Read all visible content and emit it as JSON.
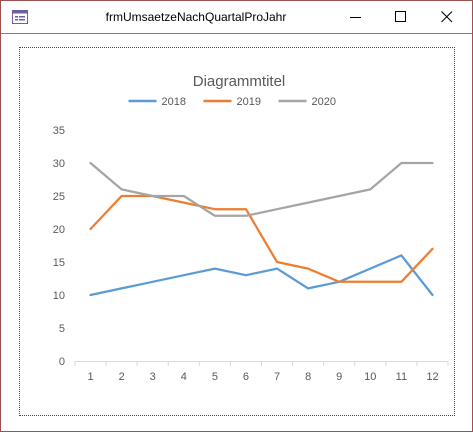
{
  "window": {
    "title": "frmUmsaetzeNachQuartalProJahr"
  },
  "icons": {
    "app": "form-icon",
    "minimize": "minimize-icon",
    "maximize": "maximize-icon",
    "close": "close-icon"
  },
  "chart_data": {
    "type": "line",
    "title": "Diagrammtitel",
    "xlabel": "",
    "ylabel": "",
    "categories": [
      "1",
      "2",
      "3",
      "4",
      "5",
      "6",
      "7",
      "8",
      "9",
      "10",
      "11",
      "12"
    ],
    "ylim": [
      0,
      35
    ],
    "yticks": [
      "0",
      "5",
      "10",
      "15",
      "20",
      "25",
      "30",
      "35"
    ],
    "grid": false,
    "legend": "top",
    "series": [
      {
        "name": "2018",
        "color": "#5b9bd5",
        "values": [
          10,
          11,
          12,
          13,
          14,
          13,
          14,
          11,
          12,
          14,
          16,
          10
        ]
      },
      {
        "name": "2019",
        "color": "#ed7d31",
        "values": [
          20,
          25,
          25,
          24,
          23,
          23,
          15,
          14,
          12,
          12,
          12,
          17
        ]
      },
      {
        "name": "2020",
        "color": "#a5a5a5",
        "values": [
          30,
          26,
          25,
          25,
          22,
          22,
          23,
          24,
          25,
          26,
          30,
          30
        ]
      }
    ]
  }
}
